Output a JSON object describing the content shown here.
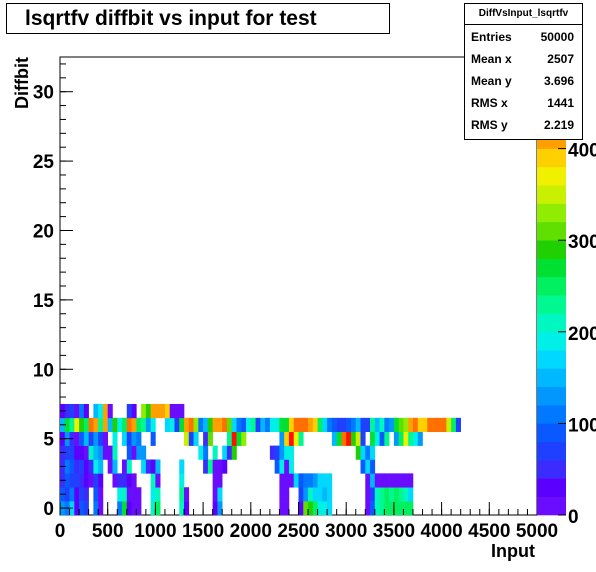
{
  "chart_data": {
    "type": "heatmap",
    "title": "lsqrtfv diffbit vs input for test",
    "xlabel": "Input",
    "ylabel": "Diffbit",
    "xlim": [
      0,
      5000
    ],
    "ylim": [
      -0.5,
      32.5
    ],
    "x_ticks": [
      "0",
      "500",
      "1000",
      "1500",
      "2000",
      "2500",
      "3000",
      "3500",
      "4000",
      "4500",
      "5000"
    ],
    "y_ticks": [
      "0",
      "5",
      "10",
      "15",
      "20",
      "25",
      "30"
    ],
    "z_ticks": [
      "0",
      "100",
      "200",
      "300",
      "400"
    ],
    "zlim": [
      0,
      500
    ],
    "bin_width": 50,
    "palette": [
      "#6a0dff",
      "#5a00ff",
      "#3b2bff",
      "#2040ff",
      "#0a58ff",
      "#0078ff",
      "#0098ff",
      "#00b8ff",
      "#00d8ff",
      "#00f0e8",
      "#00f8c0",
      "#00f890",
      "#00f060",
      "#00e030",
      "#20d000",
      "#60e000",
      "#90ec00",
      "#c8f000",
      "#f0f000",
      "#ffd000",
      "#ffa000",
      "#ff7000",
      "#ff4000",
      "#ff1000",
      "#ff0000"
    ],
    "cells": [
      [
        0,
        0,
        6
      ],
      [
        1,
        0,
        5
      ],
      [
        2,
        0,
        8
      ],
      [
        3,
        0,
        1
      ],
      [
        4,
        0,
        4
      ],
      [
        5,
        0,
        3
      ],
      [
        7,
        0,
        5
      ],
      [
        8,
        0,
        0
      ],
      [
        12,
        0,
        5
      ],
      [
        13,
        0,
        13
      ],
      [
        14,
        0,
        1
      ],
      [
        15,
        0,
        0
      ],
      [
        16,
        0,
        0
      ],
      [
        19,
        0,
        10
      ],
      [
        20,
        0,
        12
      ],
      [
        25,
        0,
        10
      ],
      [
        26,
        0,
        1
      ],
      [
        32,
        0,
        1
      ],
      [
        33,
        0,
        6
      ],
      [
        46,
        0,
        0
      ],
      [
        47,
        0,
        0
      ],
      [
        50,
        0,
        1
      ],
      [
        51,
        0,
        15
      ],
      [
        52,
        0,
        14
      ],
      [
        53,
        0,
        12
      ],
      [
        54,
        0,
        9
      ],
      [
        55,
        0,
        9
      ],
      [
        56,
        0,
        8
      ],
      [
        64,
        0,
        0
      ],
      [
        65,
        0,
        4
      ],
      [
        66,
        0,
        10
      ],
      [
        67,
        0,
        11
      ],
      [
        68,
        0,
        12
      ],
      [
        69,
        0,
        12
      ],
      [
        70,
        0,
        12
      ],
      [
        71,
        0,
        12
      ],
      [
        72,
        0,
        12
      ],
      [
        73,
        0,
        12
      ],
      [
        0,
        1,
        4
      ],
      [
        1,
        1,
        3
      ],
      [
        2,
        1,
        5
      ],
      [
        3,
        1,
        1
      ],
      [
        4,
        1,
        3
      ],
      [
        5,
        1,
        2
      ],
      [
        7,
        1,
        4
      ],
      [
        8,
        1,
        0
      ],
      [
        12,
        1,
        9
      ],
      [
        13,
        1,
        10
      ],
      [
        14,
        1,
        0
      ],
      [
        15,
        1,
        0
      ],
      [
        16,
        1,
        0
      ],
      [
        19,
        1,
        9
      ],
      [
        20,
        1,
        10
      ],
      [
        25,
        1,
        11
      ],
      [
        26,
        1,
        0
      ],
      [
        32,
        1,
        0
      ],
      [
        33,
        1,
        8
      ],
      [
        46,
        1,
        0
      ],
      [
        47,
        1,
        0
      ],
      [
        50,
        1,
        3
      ],
      [
        51,
        1,
        6
      ],
      [
        52,
        1,
        10
      ],
      [
        53,
        1,
        8
      ],
      [
        54,
        1,
        8
      ],
      [
        55,
        1,
        7
      ],
      [
        56,
        1,
        8
      ],
      [
        64,
        1,
        0
      ],
      [
        65,
        1,
        3
      ],
      [
        66,
        1,
        10
      ],
      [
        67,
        1,
        11
      ],
      [
        68,
        1,
        12
      ],
      [
        69,
        1,
        11
      ],
      [
        70,
        1,
        12
      ],
      [
        71,
        1,
        11
      ],
      [
        72,
        1,
        10
      ],
      [
        73,
        1,
        8
      ],
      [
        0,
        2,
        2
      ],
      [
        1,
        2,
        4
      ],
      [
        2,
        2,
        3
      ],
      [
        3,
        2,
        3
      ],
      [
        4,
        2,
        2
      ],
      [
        5,
        2,
        1
      ],
      [
        6,
        2,
        0
      ],
      [
        7,
        2,
        3
      ],
      [
        8,
        2,
        1
      ],
      [
        11,
        2,
        0
      ],
      [
        12,
        2,
        2
      ],
      [
        13,
        2,
        2
      ],
      [
        14,
        2,
        1
      ],
      [
        15,
        2,
        0
      ],
      [
        19,
        2,
        10
      ],
      [
        20,
        2,
        0
      ],
      [
        25,
        2,
        9
      ],
      [
        32,
        2,
        0
      ],
      [
        33,
        2,
        0
      ],
      [
        46,
        2,
        0
      ],
      [
        47,
        2,
        0
      ],
      [
        48,
        2,
        0
      ],
      [
        49,
        2,
        8
      ],
      [
        50,
        2,
        4
      ],
      [
        51,
        2,
        5
      ],
      [
        52,
        2,
        5
      ],
      [
        53,
        2,
        6
      ],
      [
        54,
        2,
        8
      ],
      [
        55,
        2,
        8
      ],
      [
        56,
        2,
        8
      ],
      [
        64,
        2,
        0
      ],
      [
        65,
        2,
        7
      ],
      [
        66,
        2,
        0
      ],
      [
        67,
        2,
        0
      ],
      [
        68,
        2,
        0
      ],
      [
        69,
        2,
        0
      ],
      [
        70,
        2,
        0
      ],
      [
        71,
        2,
        0
      ],
      [
        72,
        2,
        0
      ],
      [
        73,
        2,
        0
      ],
      [
        0,
        3,
        2
      ],
      [
        1,
        3,
        5
      ],
      [
        2,
        3,
        4
      ],
      [
        3,
        3,
        2
      ],
      [
        4,
        3,
        3
      ],
      [
        5,
        3,
        1
      ],
      [
        6,
        3,
        2
      ],
      [
        7,
        3,
        9
      ],
      [
        8,
        3,
        7
      ],
      [
        10,
        3,
        0
      ],
      [
        11,
        3,
        7
      ],
      [
        13,
        3,
        0
      ],
      [
        14,
        3,
        10
      ],
      [
        17,
        3,
        8
      ],
      [
        18,
        3,
        2
      ],
      [
        19,
        3,
        1
      ],
      [
        20,
        3,
        7
      ],
      [
        25,
        3,
        8
      ],
      [
        30,
        3,
        2
      ],
      [
        31,
        3,
        11
      ],
      [
        32,
        3,
        0
      ],
      [
        33,
        3,
        0
      ],
      [
        34,
        3,
        1
      ],
      [
        45,
        3,
        4
      ],
      [
        46,
        3,
        9
      ],
      [
        47,
        3,
        0
      ],
      [
        48,
        3,
        9
      ],
      [
        63,
        3,
        4
      ],
      [
        64,
        3,
        8
      ],
      [
        65,
        3,
        4
      ],
      [
        0,
        4,
        2
      ],
      [
        1,
        4,
        3
      ],
      [
        2,
        4,
        3
      ],
      [
        3,
        4,
        1
      ],
      [
        4,
        4,
        1
      ],
      [
        5,
        4,
        0
      ],
      [
        6,
        4,
        10
      ],
      [
        7,
        4,
        7
      ],
      [
        8,
        4,
        6
      ],
      [
        9,
        4,
        0
      ],
      [
        10,
        4,
        0
      ],
      [
        11,
        4,
        10
      ],
      [
        14,
        4,
        4
      ],
      [
        15,
        4,
        0
      ],
      [
        16,
        4,
        6
      ],
      [
        17,
        4,
        6
      ],
      [
        29,
        4,
        9
      ],
      [
        30,
        4,
        5
      ],
      [
        32,
        4,
        10
      ],
      [
        34,
        4,
        8
      ],
      [
        35,
        4,
        2
      ],
      [
        36,
        4,
        14
      ],
      [
        44,
        4,
        2
      ],
      [
        45,
        4,
        3
      ],
      [
        46,
        4,
        6
      ],
      [
        47,
        4,
        9
      ],
      [
        48,
        4,
        9
      ],
      [
        62,
        4,
        14
      ],
      [
        63,
        4,
        8
      ],
      [
        64,
        4,
        5
      ],
      [
        65,
        4,
        8
      ],
      [
        0,
        5,
        1
      ],
      [
        1,
        5,
        6
      ],
      [
        2,
        5,
        2
      ],
      [
        3,
        5,
        0
      ],
      [
        4,
        5,
        4
      ],
      [
        5,
        5,
        7
      ],
      [
        6,
        5,
        3
      ],
      [
        7,
        5,
        6
      ],
      [
        8,
        5,
        3
      ],
      [
        9,
        5,
        0
      ],
      [
        11,
        5,
        9
      ],
      [
        13,
        5,
        8
      ],
      [
        14,
        5,
        3
      ],
      [
        15,
        5,
        6
      ],
      [
        16,
        5,
        5
      ],
      [
        19,
        5,
        4
      ],
      [
        26,
        5,
        17
      ],
      [
        27,
        5,
        3
      ],
      [
        28,
        5,
        8
      ],
      [
        30,
        5,
        2
      ],
      [
        31,
        5,
        15
      ],
      [
        35,
        5,
        11
      ],
      [
        36,
        5,
        23
      ],
      [
        37,
        5,
        13
      ],
      [
        38,
        5,
        16
      ],
      [
        46,
        5,
        6
      ],
      [
        47,
        5,
        19
      ],
      [
        48,
        5,
        23
      ],
      [
        49,
        5,
        18
      ],
      [
        50,
        5,
        11
      ],
      [
        57,
        5,
        7
      ],
      [
        58,
        5,
        13
      ],
      [
        59,
        5,
        21
      ],
      [
        60,
        5,
        23
      ],
      [
        61,
        5,
        14
      ],
      [
        62,
        5,
        17
      ],
      [
        63,
        5,
        3
      ],
      [
        65,
        5,
        13
      ],
      [
        66,
        5,
        9
      ],
      [
        67,
        5,
        4
      ],
      [
        68,
        5,
        11
      ],
      [
        70,
        5,
        6
      ],
      [
        71,
        5,
        12
      ],
      [
        72,
        5,
        18
      ],
      [
        73,
        5,
        11
      ],
      [
        74,
        5,
        9
      ],
      [
        75,
        5,
        6
      ],
      [
        0,
        6,
        7
      ],
      [
        1,
        6,
        13
      ],
      [
        2,
        6,
        11
      ],
      [
        3,
        6,
        18
      ],
      [
        4,
        6,
        14
      ],
      [
        5,
        6,
        12
      ],
      [
        6,
        6,
        21
      ],
      [
        7,
        6,
        20
      ],
      [
        8,
        6,
        11
      ],
      [
        9,
        6,
        20
      ],
      [
        10,
        6,
        7
      ],
      [
        11,
        6,
        14
      ],
      [
        12,
        6,
        9
      ],
      [
        13,
        6,
        12
      ],
      [
        14,
        6,
        21
      ],
      [
        15,
        6,
        20
      ],
      [
        16,
        6,
        12
      ],
      [
        17,
        6,
        11
      ],
      [
        18,
        6,
        6
      ],
      [
        19,
        6,
        9
      ],
      [
        22,
        6,
        8
      ],
      [
        23,
        6,
        9
      ],
      [
        24,
        6,
        3
      ],
      [
        25,
        6,
        13
      ],
      [
        26,
        6,
        20
      ],
      [
        27,
        6,
        21
      ],
      [
        28,
        6,
        16
      ],
      [
        29,
        6,
        5
      ],
      [
        30,
        6,
        7
      ],
      [
        31,
        6,
        14
      ],
      [
        32,
        6,
        20
      ],
      [
        33,
        6,
        20
      ],
      [
        34,
        6,
        21
      ],
      [
        35,
        6,
        15
      ],
      [
        36,
        6,
        8
      ],
      [
        37,
        6,
        5
      ],
      [
        38,
        6,
        4
      ],
      [
        39,
        6,
        9
      ],
      [
        40,
        6,
        11
      ],
      [
        41,
        6,
        3
      ],
      [
        42,
        6,
        7
      ],
      [
        43,
        6,
        5
      ],
      [
        44,
        6,
        9
      ],
      [
        45,
        6,
        9
      ],
      [
        46,
        6,
        13
      ],
      [
        47,
        6,
        13
      ],
      [
        48,
        6,
        19
      ],
      [
        49,
        6,
        21
      ],
      [
        50,
        6,
        21
      ],
      [
        51,
        6,
        21
      ],
      [
        52,
        6,
        20
      ],
      [
        53,
        6,
        19
      ],
      [
        54,
        6,
        12
      ],
      [
        55,
        6,
        8
      ],
      [
        56,
        6,
        5
      ],
      [
        57,
        6,
        4
      ],
      [
        58,
        6,
        3
      ],
      [
        59,
        6,
        3
      ],
      [
        60,
        6,
        4
      ],
      [
        61,
        6,
        5
      ],
      [
        62,
        6,
        7
      ],
      [
        63,
        6,
        3
      ],
      [
        64,
        6,
        3
      ],
      [
        65,
        6,
        11
      ],
      [
        66,
        6,
        7
      ],
      [
        67,
        6,
        10
      ],
      [
        68,
        6,
        5
      ],
      [
        69,
        6,
        6
      ],
      [
        70,
        6,
        13
      ],
      [
        71,
        6,
        15
      ],
      [
        72,
        6,
        16
      ],
      [
        73,
        6,
        20
      ],
      [
        74,
        6,
        21
      ],
      [
        75,
        6,
        19
      ],
      [
        76,
        6,
        19
      ],
      [
        77,
        6,
        21
      ],
      [
        78,
        6,
        21
      ],
      [
        79,
        6,
        21
      ],
      [
        80,
        6,
        21
      ],
      [
        81,
        6,
        17
      ],
      [
        82,
        6,
        12
      ],
      [
        83,
        6,
        3
      ],
      [
        0,
        7,
        1
      ],
      [
        1,
        7,
        2
      ],
      [
        2,
        7,
        3
      ],
      [
        3,
        7,
        0
      ],
      [
        4,
        7,
        5
      ],
      [
        5,
        7,
        1
      ],
      [
        7,
        7,
        7
      ],
      [
        8,
        7,
        9
      ],
      [
        9,
        7,
        20
      ],
      [
        10,
        7,
        0
      ],
      [
        14,
        7,
        3
      ],
      [
        15,
        7,
        1
      ],
      [
        17,
        7,
        16
      ],
      [
        18,
        7,
        14
      ],
      [
        19,
        7,
        20
      ],
      [
        20,
        7,
        20
      ],
      [
        21,
        7,
        20
      ],
      [
        22,
        7,
        19
      ],
      [
        23,
        7,
        0
      ],
      [
        24,
        7,
        0
      ],
      [
        25,
        7,
        0
      ]
    ]
  }
}
